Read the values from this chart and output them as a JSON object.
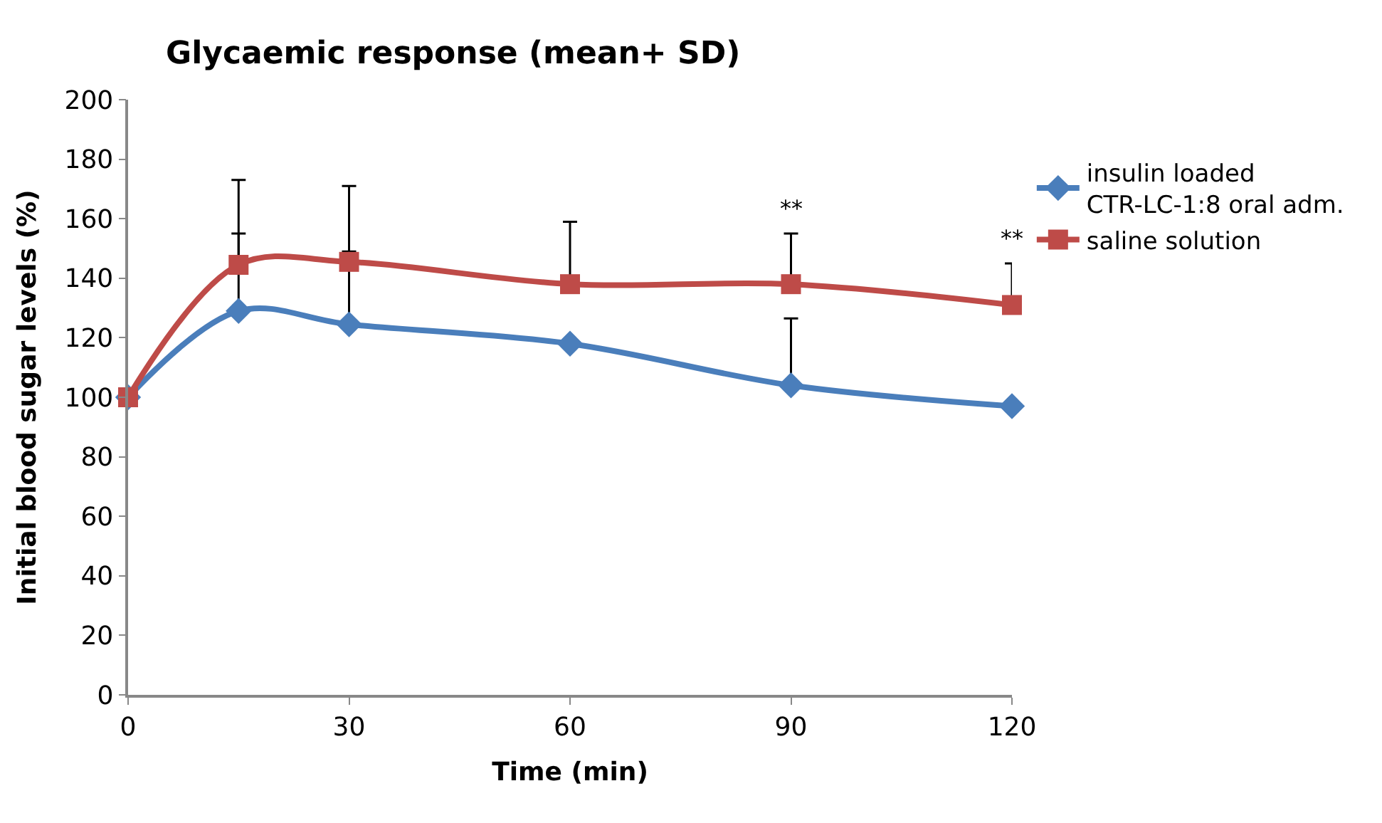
{
  "chart_data": {
    "type": "line",
    "title": "Glycaemic response (mean+ SD)",
    "xlabel": "Time (min)",
    "ylabel": "Initial blood sugar levels (%)",
    "x": [
      0,
      15,
      30,
      60,
      90,
      120
    ],
    "series": [
      {
        "name": "insulin loaded CTR-LC-1:8 oral adm.",
        "color": "#4a7ebb",
        "marker": "diamond",
        "values": [
          100,
          129,
          124.5,
          118,
          104,
          97
        ],
        "errors": [
          null,
          [
            129,
            155
          ],
          [
            124.5,
            149
          ],
          null,
          [
            104,
            126.5
          ],
          null
        ]
      },
      {
        "name": "saline solution",
        "color": "#be4b48",
        "marker": "square",
        "values": [
          100,
          144.5,
          145.5,
          138,
          138,
          131
        ],
        "errors": [
          null,
          [
            144.5,
            173
          ],
          [
            145.5,
            171
          ],
          [
            138,
            159
          ],
          [
            138,
            155
          ],
          [
            131,
            145
          ]
        ]
      }
    ],
    "annotations": [
      {
        "text": "**",
        "x": 90,
        "y": 155
      },
      {
        "text": "**",
        "x": 120,
        "y": 145
      }
    ],
    "xlim": [
      0,
      120
    ],
    "xticks": [
      0,
      30,
      60,
      90,
      120
    ],
    "ylim": [
      0,
      200
    ],
    "yticks": [
      0,
      20,
      40,
      60,
      80,
      100,
      120,
      140,
      160,
      180,
      200
    ],
    "legend": "right"
  }
}
